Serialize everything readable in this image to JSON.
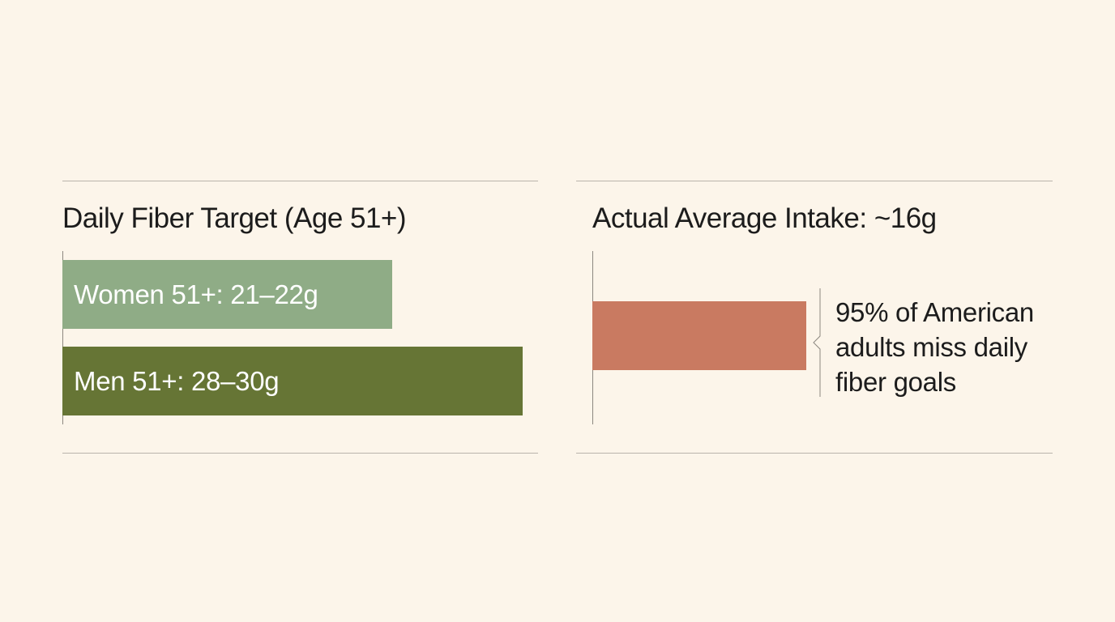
{
  "chart_data": [
    {
      "type": "bar",
      "orientation": "horizontal",
      "title": "Daily Fiber Target (Age 51+)",
      "categories": [
        "Women 51+: 21–22g",
        "Men 51+: 28–30g"
      ],
      "values": [
        22,
        30
      ],
      "unit": "g",
      "xlim": [
        0,
        31
      ],
      "colors": [
        "#8fac86",
        "#667535"
      ],
      "grid": false
    },
    {
      "type": "bar",
      "orientation": "horizontal",
      "title": "Actual Average Intake: ~16g",
      "categories": [
        ""
      ],
      "values": [
        16
      ],
      "unit": "g",
      "xlim": [
        0,
        31
      ],
      "colors": [
        "#c97a61"
      ],
      "grid": false,
      "annotation": "95% of American adults miss daily fiber goals"
    }
  ],
  "colors": {
    "background": "#fcf5ea",
    "rule": "#b9b4ab",
    "women_bar": "#8fac86",
    "men_bar": "#667535",
    "intake_bar": "#c97a61"
  }
}
